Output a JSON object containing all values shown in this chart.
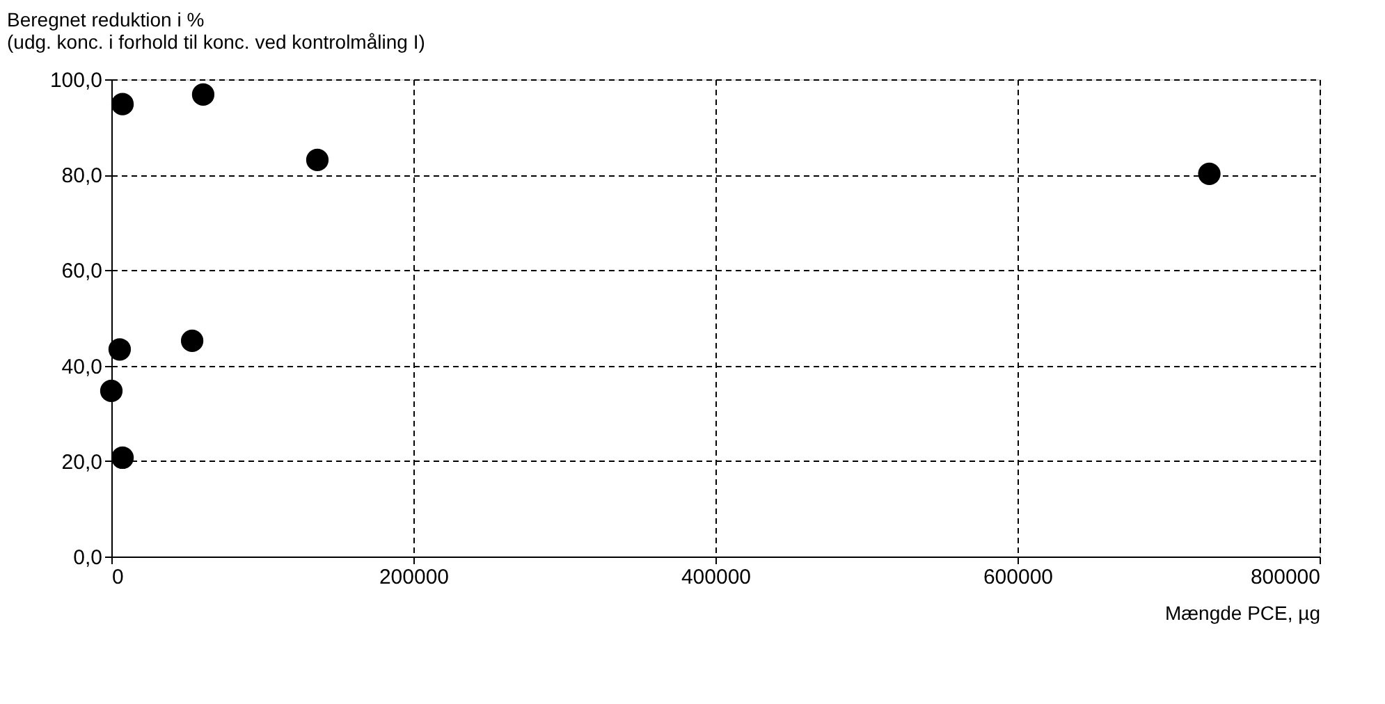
{
  "chart_data": {
    "type": "scatter",
    "ylabel": "Beregnet reduktion i %\n(udg. konc. i forhold til konc. ved kontrolmåling I)",
    "xlabel": "Mængde PCE, µg",
    "x": [
      0,
      5500,
      7400,
      7400,
      53500,
      60800,
      136400,
      727000
    ],
    "series": [
      {
        "color": "#000000",
        "values": [
          34.7,
          43.4,
          20.7,
          94.8,
          45.2,
          96.8,
          83.1,
          80.2
        ]
      }
    ],
    "xlim": [
      0,
      800000
    ],
    "xticks": [
      0,
      200000,
      400000,
      600000,
      800000
    ],
    "ylim": [
      0,
      100
    ],
    "yticks": [
      {
        "value": 0,
        "label": "0,0"
      },
      {
        "value": 20,
        "label": "20,0"
      },
      {
        "value": 40,
        "label": "40,0"
      },
      {
        "value": 60,
        "label": "60,0"
      },
      {
        "value": 80,
        "label": "80,0"
      },
      {
        "value": 100,
        "label": "100,0"
      }
    ],
    "grid": true,
    "marker": "circle"
  }
}
